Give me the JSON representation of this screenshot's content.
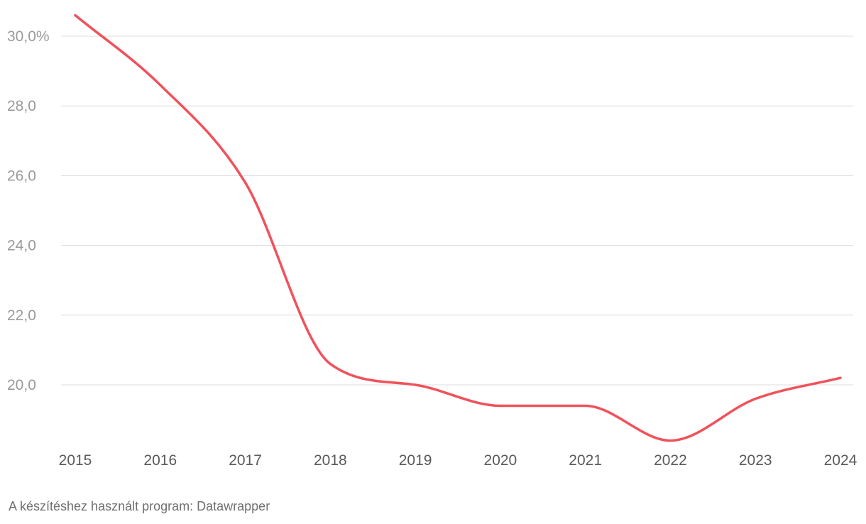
{
  "chart_data": {
    "type": "line",
    "x": [
      "2015",
      "2016",
      "2017",
      "2018",
      "2019",
      "2020",
      "2021",
      "2022",
      "2023",
      "2024"
    ],
    "series": [
      {
        "values": [
          30.6,
          28.6,
          25.8,
          20.6,
          20.0,
          19.4,
          19.4,
          18.4,
          19.6,
          20.2
        ],
        "color": "#f0525b"
      }
    ],
    "yticks": [
      {
        "value": 30,
        "label": "30,0%"
      },
      {
        "value": 28,
        "label": "28,0"
      },
      {
        "value": 26,
        "label": "26,0"
      },
      {
        "value": 24,
        "label": "24,0"
      },
      {
        "value": 22,
        "label": "22,0"
      },
      {
        "value": 20,
        "label": "20,0"
      }
    ],
    "grid": true
  },
  "footer": {
    "credit": "A készítéshez használt program: Datawrapper"
  }
}
